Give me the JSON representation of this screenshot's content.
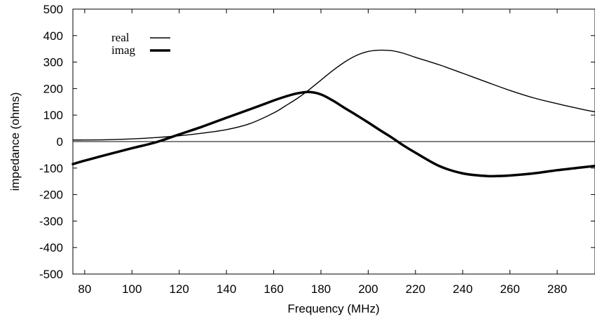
{
  "chart_data": {
    "type": "line",
    "xlabel": "Frequency (MHz)",
    "ylabel": "impedance (ohms)",
    "xlim": [
      75,
      296
    ],
    "ylim": [
      -500,
      500
    ],
    "xticks": [
      80,
      100,
      120,
      140,
      160,
      180,
      200,
      220,
      240,
      260,
      280
    ],
    "yticks": [
      -500,
      -400,
      -300,
      -200,
      -100,
      0,
      100,
      200,
      300,
      400,
      500
    ],
    "zero_line": true,
    "grid": false,
    "legend_position": "top-left",
    "series": [
      {
        "name": "real",
        "line_weight": "thin",
        "color": "#000000",
        "x": [
          75,
          80,
          90,
          100,
          110,
          120,
          130,
          140,
          150,
          160,
          165,
          170,
          175,
          180,
          185,
          190,
          195,
          200,
          205,
          210,
          215,
          220,
          230,
          240,
          250,
          260,
          270,
          280,
          290,
          296
        ],
        "y": [
          6,
          6,
          7,
          10,
          15,
          22,
          32,
          45,
          68,
          108,
          135,
          163,
          196,
          232,
          268,
          300,
          325,
          340,
          345,
          343,
          333,
          318,
          290,
          258,
          225,
          193,
          165,
          143,
          123,
          112
        ]
      },
      {
        "name": "imag",
        "line_weight": "thick",
        "color": "#000000",
        "x": [
          75,
          80,
          90,
          100,
          110,
          120,
          130,
          140,
          150,
          160,
          165,
          170,
          175,
          180,
          185,
          190,
          195,
          200,
          205,
          210,
          215,
          220,
          230,
          240,
          250,
          255,
          260,
          270,
          280,
          290,
          296
        ],
        "y": [
          -85,
          -72,
          -48,
          -25,
          -3,
          27,
          57,
          90,
          122,
          155,
          170,
          182,
          187,
          178,
          155,
          127,
          100,
          72,
          43,
          15,
          -15,
          -42,
          -92,
          -120,
          -130,
          -130,
          -128,
          -120,
          -108,
          -98,
          -92
        ]
      }
    ]
  }
}
